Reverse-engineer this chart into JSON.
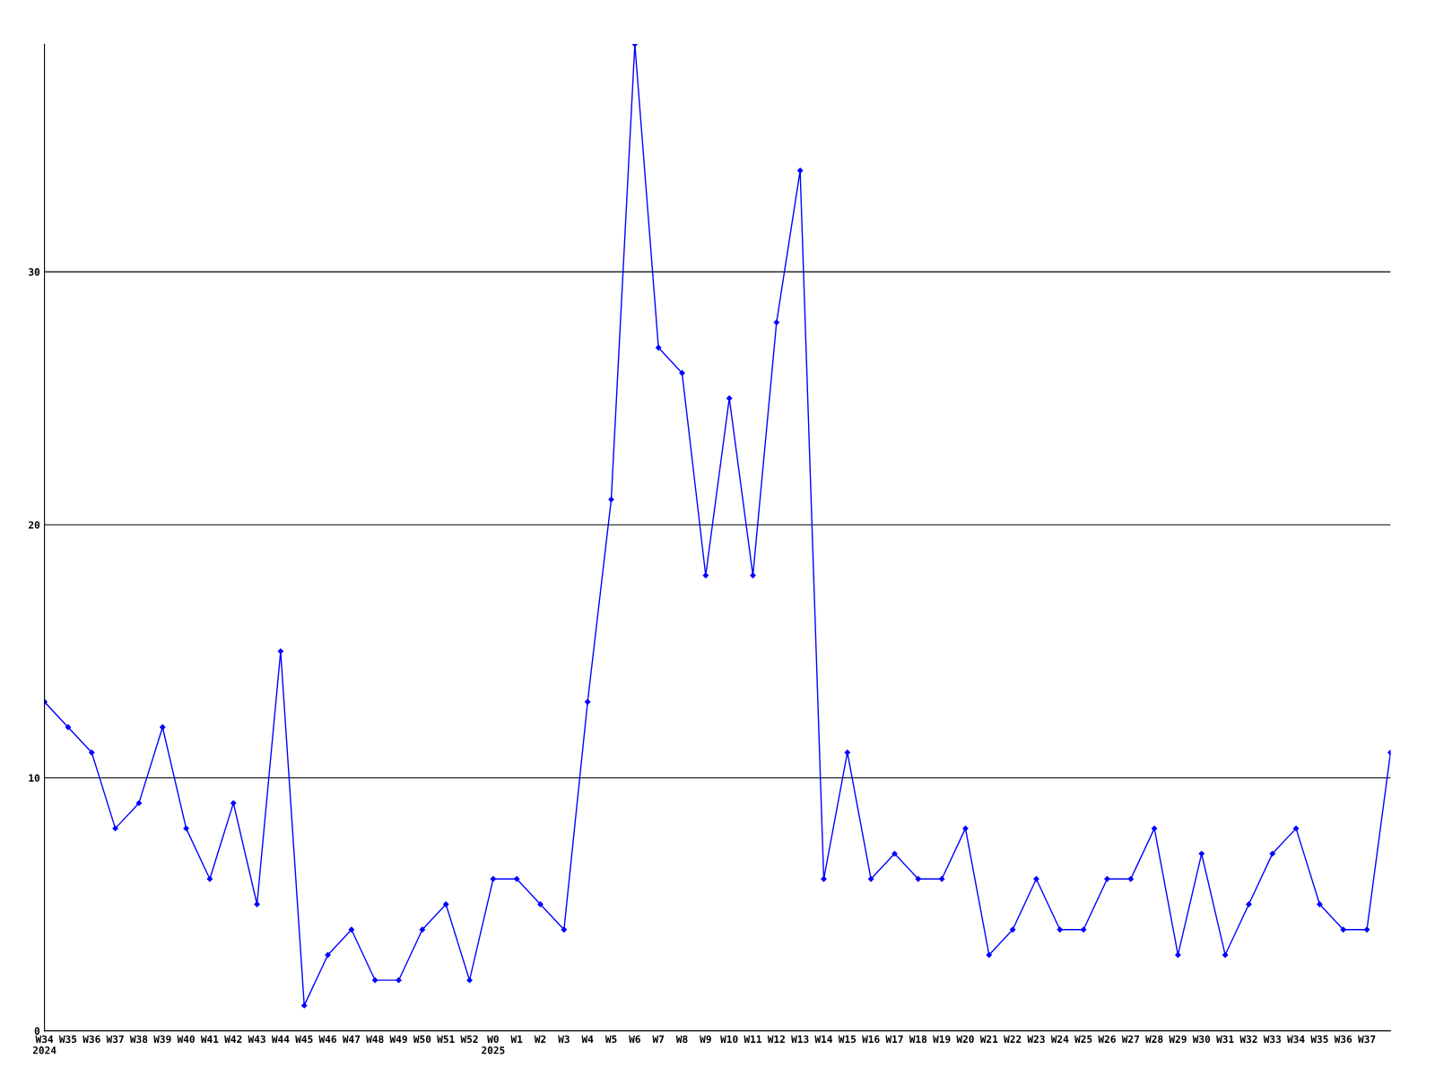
{
  "chart_data": {
    "type": "line",
    "categories": [
      "W34\n2024",
      "W35",
      "W36",
      "W37",
      "W38",
      "W39",
      "W40",
      "W41",
      "W42",
      "W43",
      "W44",
      "W45",
      "W46",
      "W47",
      "W48",
      "W49",
      "W50",
      "W51",
      "W52",
      "W0\n2025",
      "W1",
      "W2",
      "W3",
      "W4",
      "W5",
      "W6",
      "W7",
      "W8",
      "W9",
      "W10",
      "W11",
      "W12",
      "W13",
      "W14",
      "W15",
      "W16",
      "W17",
      "W18",
      "W19",
      "W20",
      "W21",
      "W22",
      "W23",
      "W24",
      "W25",
      "W26",
      "W27",
      "W28",
      "W29",
      "W30",
      "W31",
      "W32",
      "W33",
      "W34",
      "W35",
      "W36",
      "W37",
      null
    ],
    "series": [
      {
        "color": "#0000ff",
        "values": [
          13,
          12,
          11,
          8,
          9,
          12,
          8,
          6,
          9,
          5,
          15,
          1,
          3,
          4,
          2,
          2,
          4,
          5,
          2,
          6,
          6,
          5,
          4,
          13,
          21,
          39,
          27,
          26,
          18,
          25,
          18,
          28,
          34,
          6,
          11,
          6,
          7,
          6,
          6,
          8,
          3,
          4,
          6,
          4,
          4,
          6,
          6,
          8,
          3,
          7,
          3,
          5,
          7,
          8,
          5,
          4,
          4,
          11
        ]
      }
    ],
    "ylim": [
      0,
      39
    ],
    "yticks": [
      0,
      10,
      20,
      30
    ],
    "grid": "y",
    "marker": "diamond",
    "line_style": "solid",
    "legend": false
  }
}
